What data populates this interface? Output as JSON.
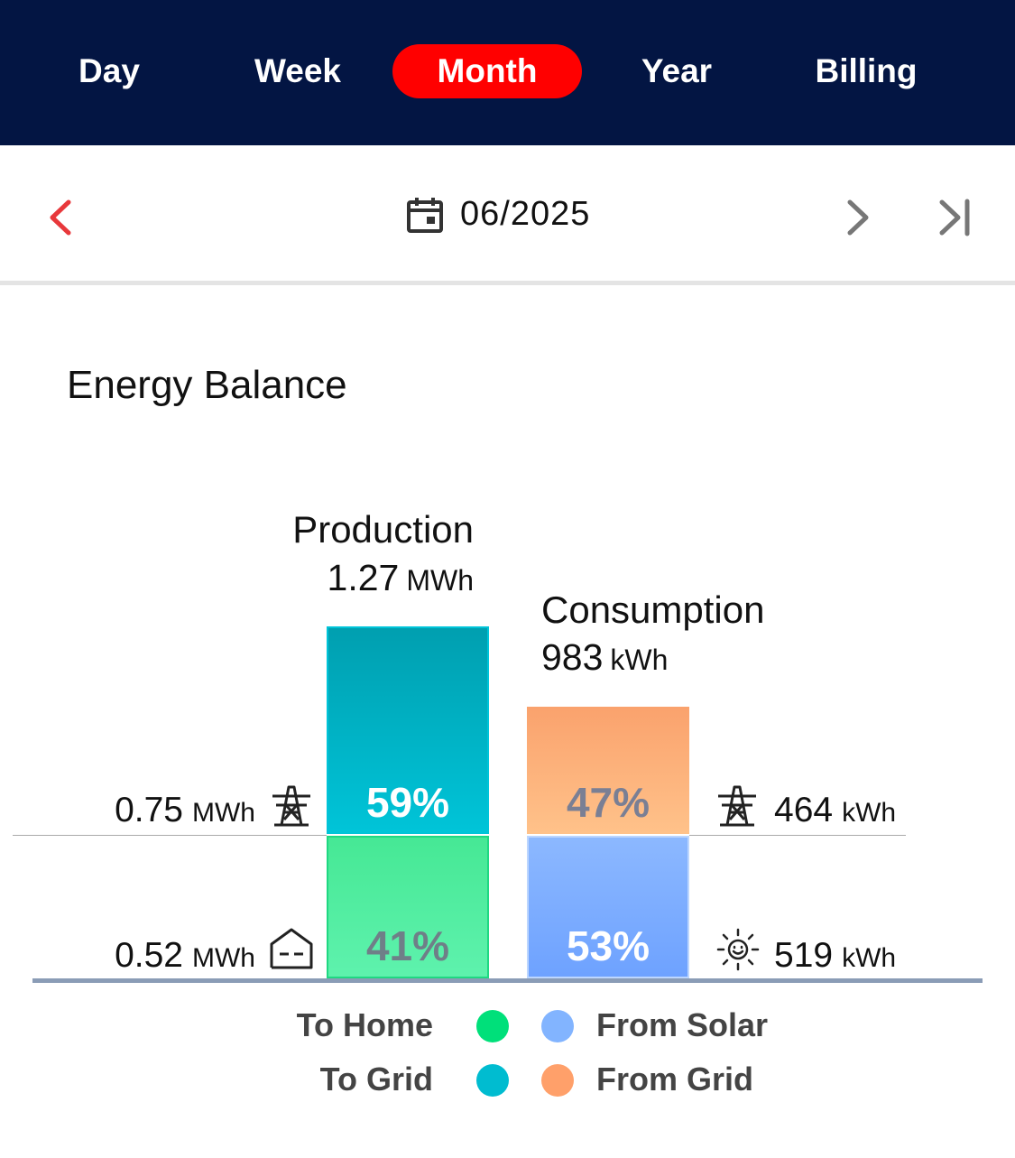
{
  "tabs": [
    {
      "label": "Day",
      "active": false
    },
    {
      "label": "Week",
      "active": false
    },
    {
      "label": "Month",
      "active": true
    },
    {
      "label": "Year",
      "active": false
    },
    {
      "label": "Billing",
      "active": false
    }
  ],
  "date_nav": {
    "date": "06/2025",
    "icons": [
      "chevron-left-icon",
      "calendar-icon",
      "chevron-right-icon",
      "skip-to-end-icon"
    ]
  },
  "section": {
    "title": "Energy Balance"
  },
  "production": {
    "title": "Production",
    "value": "1.27",
    "unit": "MWh",
    "to_grid": {
      "value": "0.75",
      "unit": "MWh",
      "percent": "59%",
      "icon": "power-tower-icon"
    },
    "to_home": {
      "value": "0.52",
      "unit": "MWh",
      "percent": "41%",
      "icon": "house-icon"
    }
  },
  "consumption": {
    "title": "Consumption",
    "value": "983",
    "unit": "kWh",
    "from_grid": {
      "value": "464",
      "unit": "kWh",
      "percent": "47%",
      "icon": "power-tower-icon"
    },
    "from_solar": {
      "value": "519",
      "unit": "kWh",
      "percent": "53%",
      "icon": "sun-icon"
    }
  },
  "legend": [
    {
      "label": "To Home",
      "color": "#00e07a"
    },
    {
      "label": "To Grid",
      "color": "#00bcd0"
    },
    {
      "label": "From Solar",
      "color": "#82b4ff"
    },
    {
      "label": "From Grid",
      "color": "#ffa06a"
    }
  ],
  "colors": {
    "header_bg": "#031543",
    "active_tab": "#ff0000",
    "accent_red": "#e8383b"
  }
}
